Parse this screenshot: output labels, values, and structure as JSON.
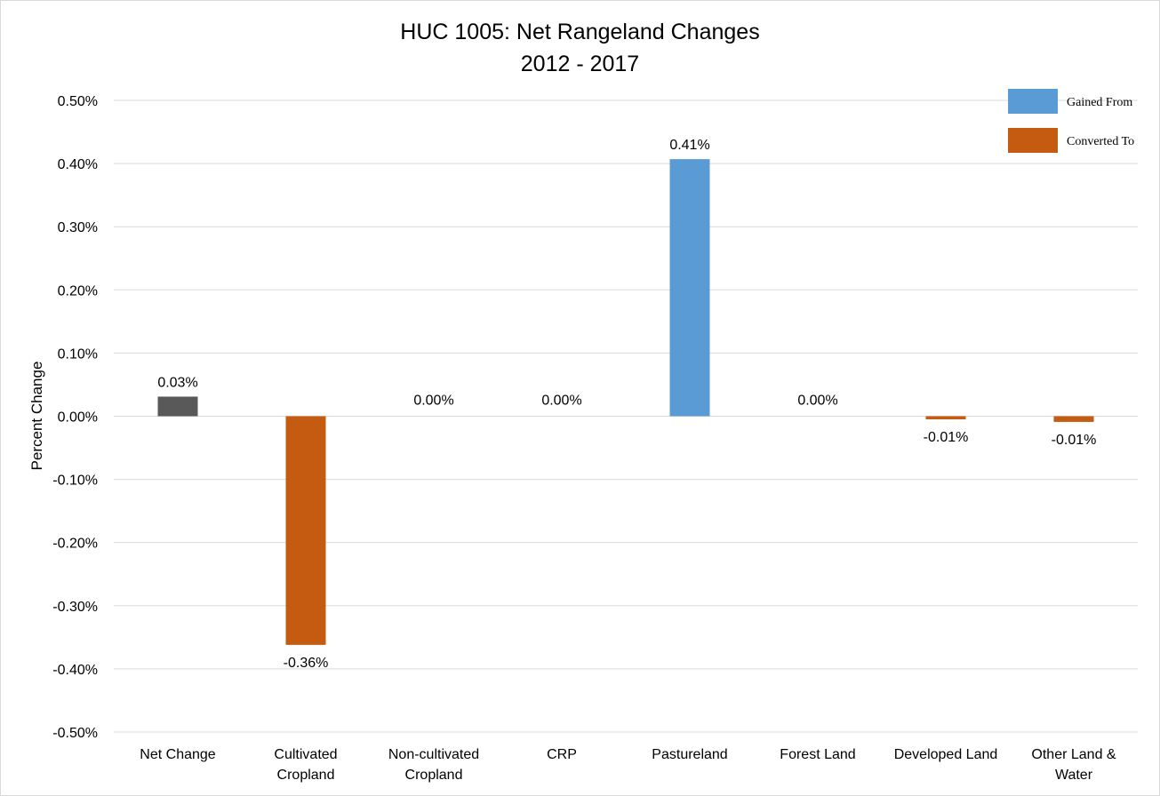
{
  "chart_data": {
    "type": "bar",
    "title": "HUC 1005: Net Rangeland Changes",
    "subtitle": "2012 - 2017",
    "ylabel": "Percent Change",
    "xlabel": "",
    "ylim": [
      -0.5,
      0.5
    ],
    "yticks": [
      {
        "value": 0.5,
        "label": "0.50%"
      },
      {
        "value": 0.4,
        "label": "0.40%"
      },
      {
        "value": 0.3,
        "label": "0.30%"
      },
      {
        "value": 0.2,
        "label": "0.20%"
      },
      {
        "value": 0.1,
        "label": "0.10%"
      },
      {
        "value": 0.0,
        "label": "0.00%"
      },
      {
        "value": -0.1,
        "label": "-0.10%"
      },
      {
        "value": -0.2,
        "label": "-0.20%"
      },
      {
        "value": -0.3,
        "label": "-0.30%"
      },
      {
        "value": -0.4,
        "label": "-0.40%"
      },
      {
        "value": -0.5,
        "label": "-0.50%"
      }
    ],
    "grid": true,
    "legend_position": "top-right",
    "categories": [
      [
        "Net Change"
      ],
      [
        "Cultivated",
        "Cropland"
      ],
      [
        "Non-cultivated",
        "Cropland"
      ],
      [
        "CRP"
      ],
      [
        "Pastureland"
      ],
      [
        "Forest Land"
      ],
      [
        "Developed Land"
      ],
      [
        "Other Land &",
        "Water"
      ]
    ],
    "bars": [
      {
        "value": 0.031,
        "label": "0.03%",
        "kind": "net"
      },
      {
        "value": -0.362,
        "label": "-0.36%",
        "kind": "converted"
      },
      {
        "value": 0.0,
        "label": "0.00%",
        "kind": "gained"
      },
      {
        "value": 0.0,
        "label": "0.00%",
        "kind": "gained"
      },
      {
        "value": 0.407,
        "label": "0.41%",
        "kind": "gained"
      },
      {
        "value": 0.0,
        "label": "0.00%",
        "kind": "gained"
      },
      {
        "value": -0.005,
        "label": "-0.01%",
        "kind": "converted"
      },
      {
        "value": -0.009,
        "label": "-0.01%",
        "kind": "converted"
      }
    ],
    "legend": [
      {
        "name": "Gained From",
        "color": "#5b9bd5"
      },
      {
        "name": "Converted To",
        "color": "#c55a11"
      }
    ],
    "colors": {
      "net": "#595959",
      "gained": "#5b9bd5",
      "converted": "#c55a11",
      "grid": "#d9d9d9"
    }
  }
}
